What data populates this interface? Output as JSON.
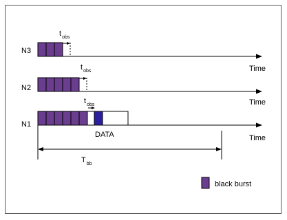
{
  "nodes": [
    {
      "name": "N3",
      "burst_slots": 3
    },
    {
      "name": "N2",
      "burst_slots": 4
    },
    {
      "name": "N1",
      "burst_slots": 5
    }
  ],
  "axis_label": "Time",
  "tobs": {
    "main": "t",
    "sub": "obs"
  },
  "tbb": {
    "main": "T",
    "sub": "bb"
  },
  "data_label": "DATA",
  "legend": {
    "label": "black burst"
  },
  "colors": {
    "burst": "#6a3d8f",
    "data_fill": "#2b1f9e",
    "line": "#000000",
    "border": "#555555"
  }
}
